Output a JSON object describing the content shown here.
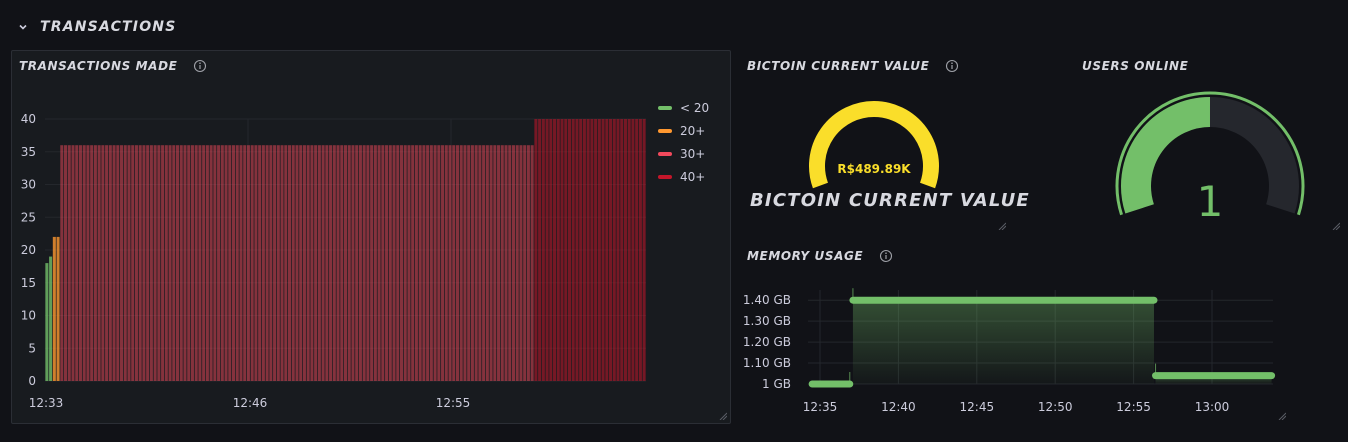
{
  "row": {
    "title": "TRANSACTIONS"
  },
  "transactions_panel": {
    "title": "TRANSACTIONS MADE",
    "legend": [
      {
        "label": "< 20",
        "color": "#73bf69"
      },
      {
        "label": "20+",
        "color": "#ff9830"
      },
      {
        "label": "30+",
        "color": "#f2495c"
      },
      {
        "label": "40+",
        "color": "#c4162a"
      }
    ]
  },
  "bitcoin_panel": {
    "title": "BICTOIN CURRENT VALUE",
    "value_text": "R$489.89K",
    "big_label": "BICTOIN CURRENT VALUE",
    "gauge_color": "#fade2a",
    "gauge_fraction": 1.0
  },
  "users_panel": {
    "title": "USERS ONLINE",
    "value_text": "1",
    "gauge_fraction": 0.5,
    "gauge_color": "#73bf69",
    "track_color": "#25272d"
  },
  "memory_panel": {
    "title": "MEMORY USAGE"
  },
  "chart_data": [
    {
      "type": "bar",
      "title": "TRANSACTIONS MADE",
      "x_ticks": [
        "12:33",
        "12:46",
        "12:55"
      ],
      "y_ticks": [
        "0",
        "5",
        "10",
        "15",
        "20",
        "25",
        "30",
        "35",
        "40"
      ],
      "ylim": [
        0,
        40
      ],
      "series": [
        {
          "name": "< 20",
          "color": "#73bf69",
          "values": [
            18,
            19
          ]
        },
        {
          "name": "20+",
          "color": "#ff9830",
          "values": [
            22,
            22
          ]
        },
        {
          "name": "30+",
          "color": "#f2495c",
          "values": [
            36
          ]
        },
        {
          "name": "40+",
          "color": "#c4162a",
          "values": [
            40
          ]
        }
      ],
      "segments": [
        {
          "series": "< 20",
          "start_bar": 0,
          "count": 2,
          "values": [
            18,
            19
          ]
        },
        {
          "series": "20+",
          "start_bar": 2,
          "count": 2,
          "values": [
            22,
            22
          ]
        },
        {
          "series": "30+",
          "start_bar": 4,
          "count": 127,
          "value": 36
        },
        {
          "series": "40+",
          "start_bar": 131,
          "count": 30,
          "value": 40
        }
      ],
      "total_bars": 161,
      "grid": true,
      "legend": "top-right"
    },
    {
      "type": "area",
      "title": "MEMORY USAGE",
      "x_ticks": [
        "12:35",
        "12:40",
        "12:45",
        "12:50",
        "12:55",
        "13:00"
      ],
      "y_ticks": [
        "1 GB",
        "1.10 GB",
        "1.20 GB",
        "1.30 GB",
        "1.40 GB"
      ],
      "ylim": [
        1.0,
        1.42
      ],
      "unit": "GB",
      "segments": [
        {
          "x_start": "12:34.5",
          "x_end": "12:36.9",
          "value": 1.0
        },
        {
          "x_start": "12:37.1",
          "x_end": "12:56.3",
          "value": 1.4
        },
        {
          "x_start": "12:56.4",
          "x_end": "13:03.8",
          "value": 1.04
        }
      ],
      "color": "#73bf69",
      "grid": true
    }
  ]
}
